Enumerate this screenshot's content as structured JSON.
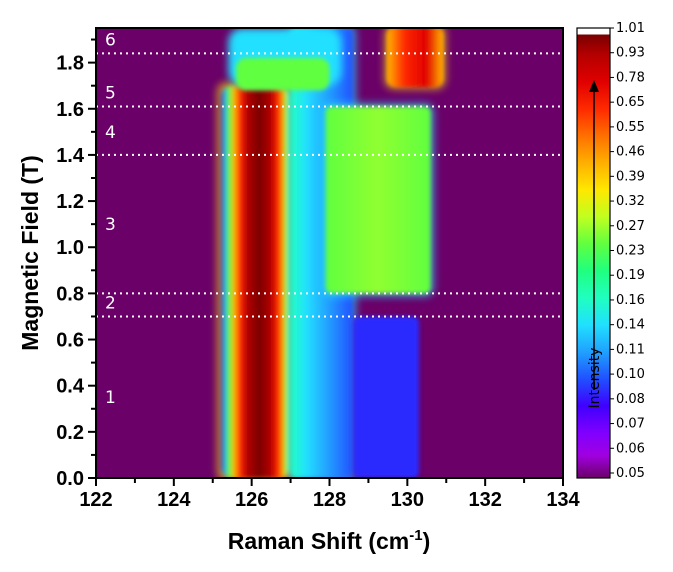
{
  "chart_data": {
    "type": "heatmap",
    "xlabel": "Raman Shift (cm",
    "xlabel_superscript": "-1",
    "xlabel_suffix": ")",
    "ylabel": "Magnetic Field (T)",
    "xlim": [
      122,
      134
    ],
    "ylim": [
      0.0,
      1.95
    ],
    "x_ticks": [
      "122",
      "124",
      "126",
      "128",
      "130",
      "132",
      "134"
    ],
    "y_ticks": [
      "0.0",
      "0.2",
      "0.4",
      "0.6",
      "0.8",
      "1.0",
      "1.2",
      "1.4",
      "1.6",
      "1.8"
    ],
    "colorbar": {
      "title": "Intensity",
      "ticks": [
        "1.01",
        "0.93",
        "0.78",
        "0.65",
        "0.55",
        "0.46",
        "0.39",
        "0.32",
        "0.27",
        "0.23",
        "0.19",
        "0.16",
        "0.14",
        "0.11",
        "0.10",
        "0.08",
        "0.07",
        "0.06",
        "0.05"
      ],
      "colors": [
        "#ffffff",
        "#7a0000",
        "#b50000",
        "#e00000",
        "#ff2a00",
        "#ff7000",
        "#ffb000",
        "#ffe800",
        "#c0ff20",
        "#60ff40",
        "#20ff80",
        "#20ffc0",
        "#20e0ff",
        "#20a0ff",
        "#2050ff",
        "#4000ff",
        "#8000ff",
        "#a000e0",
        "#6a0068"
      ]
    },
    "field_boundaries": [
      0.7,
      0.8,
      1.4,
      1.61,
      1.84
    ],
    "regions": [
      {
        "label": "1",
        "y": 0.35
      },
      {
        "label": "2",
        "y": 0.76
      },
      {
        "label": "3",
        "y": 1.1
      },
      {
        "label": "4",
        "y": 1.5
      },
      {
        "label": "5",
        "y": 1.67
      },
      {
        "label": "6",
        "y": 1.9
      }
    ],
    "bands": [
      {
        "x_min": 125.2,
        "x_max": 127.0,
        "y_min": 0.0,
        "y_max": 1.7,
        "peak_x": 126.1,
        "level": "0.93"
      },
      {
        "x_min": 127.0,
        "x_max": 128.6,
        "y_min": 0.0,
        "y_max": 1.95,
        "level": "0.11"
      },
      {
        "x_min": 128.6,
        "x_max": 130.3,
        "y_min": 0.0,
        "y_max": 0.7,
        "level": "0.07"
      },
      {
        "x_min": 127.9,
        "x_max": 130.6,
        "y_min": 0.8,
        "y_max": 1.61,
        "level": "0.19"
      },
      {
        "x_min": 129.5,
        "x_max": 130.9,
        "y_min": 1.7,
        "y_max": 1.95,
        "level": "0.78"
      }
    ]
  }
}
